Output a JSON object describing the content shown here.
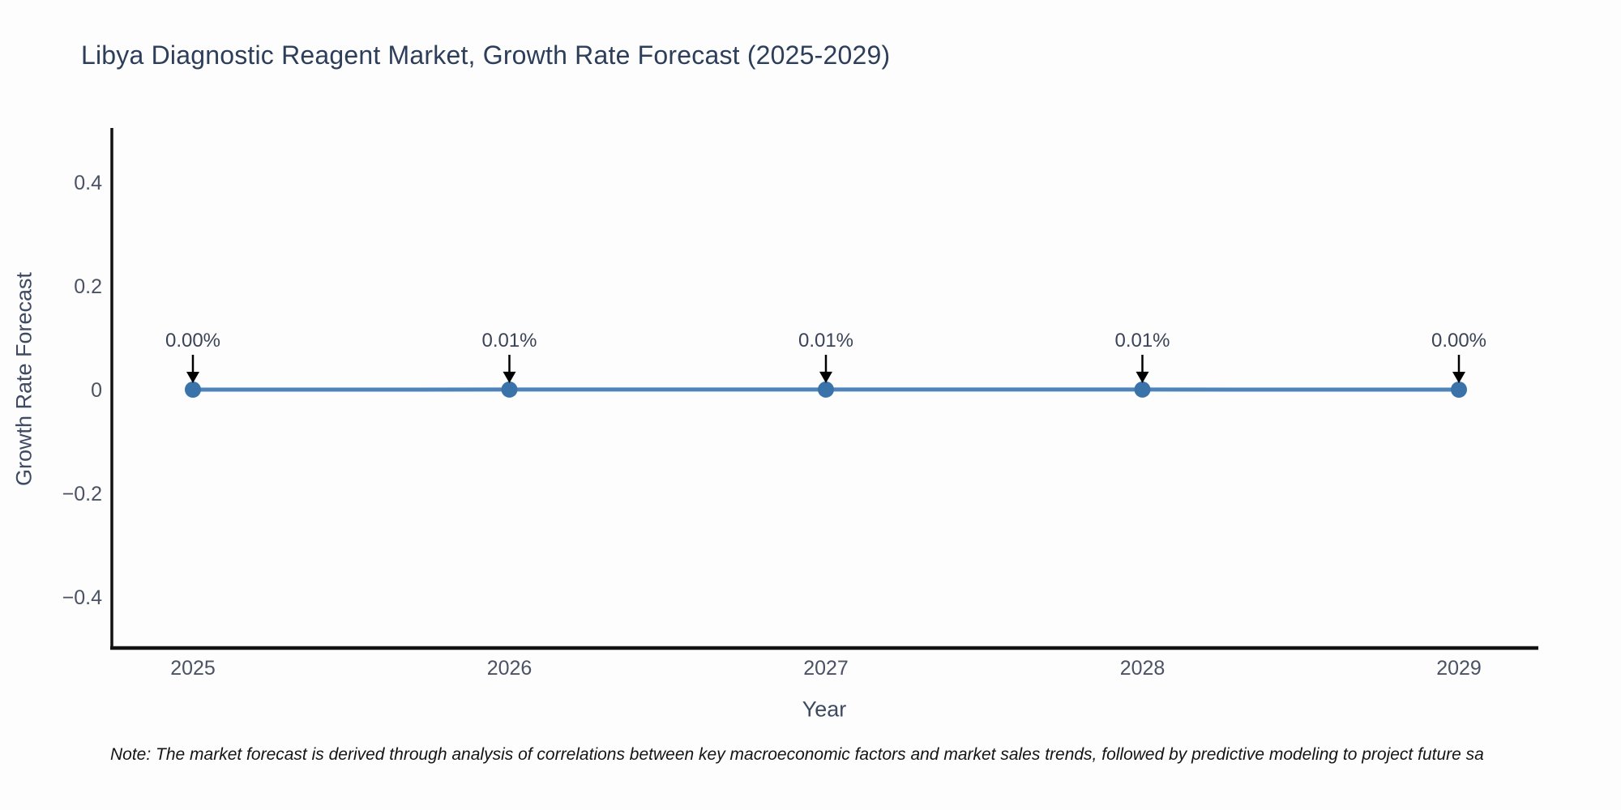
{
  "chart_data": {
    "type": "line",
    "title": "Libya Diagnostic Reagent Market, Growth Rate Forecast (2025-2029)",
    "xlabel": "Year",
    "ylabel": "Growth Rate Forecast",
    "x": [
      2025,
      2026,
      2027,
      2028,
      2029
    ],
    "values": [
      0.0,
      0.0001,
      0.0001,
      0.0001,
      0.0
    ],
    "point_labels": [
      "0.00%",
      "0.01%",
      "0.01%",
      "0.01%",
      "0.00%"
    ],
    "x_tick_labels": [
      "2025",
      "2026",
      "2027",
      "2028",
      "2029"
    ],
    "y_ticks": [
      0.4,
      0.2,
      0,
      -0.2,
      -0.4
    ],
    "y_tick_labels": [
      "0.4",
      "0.2",
      "0",
      "−0.2",
      "−0.4"
    ],
    "xlim": [
      2024.74,
      2029.25
    ],
    "ylim": [
      -0.5,
      0.505
    ],
    "grid": false,
    "legend": "none",
    "line_color": "#4e84ba",
    "marker_color": "#3a72aa",
    "axis_color": "#121212",
    "annotation_arrow_color": "#000000"
  },
  "note": {
    "text": "Note: The market forecast is derived through analysis of correlations between key macroeconomic factors and market sales trends, followed by predictive modeling to project future sa"
  }
}
